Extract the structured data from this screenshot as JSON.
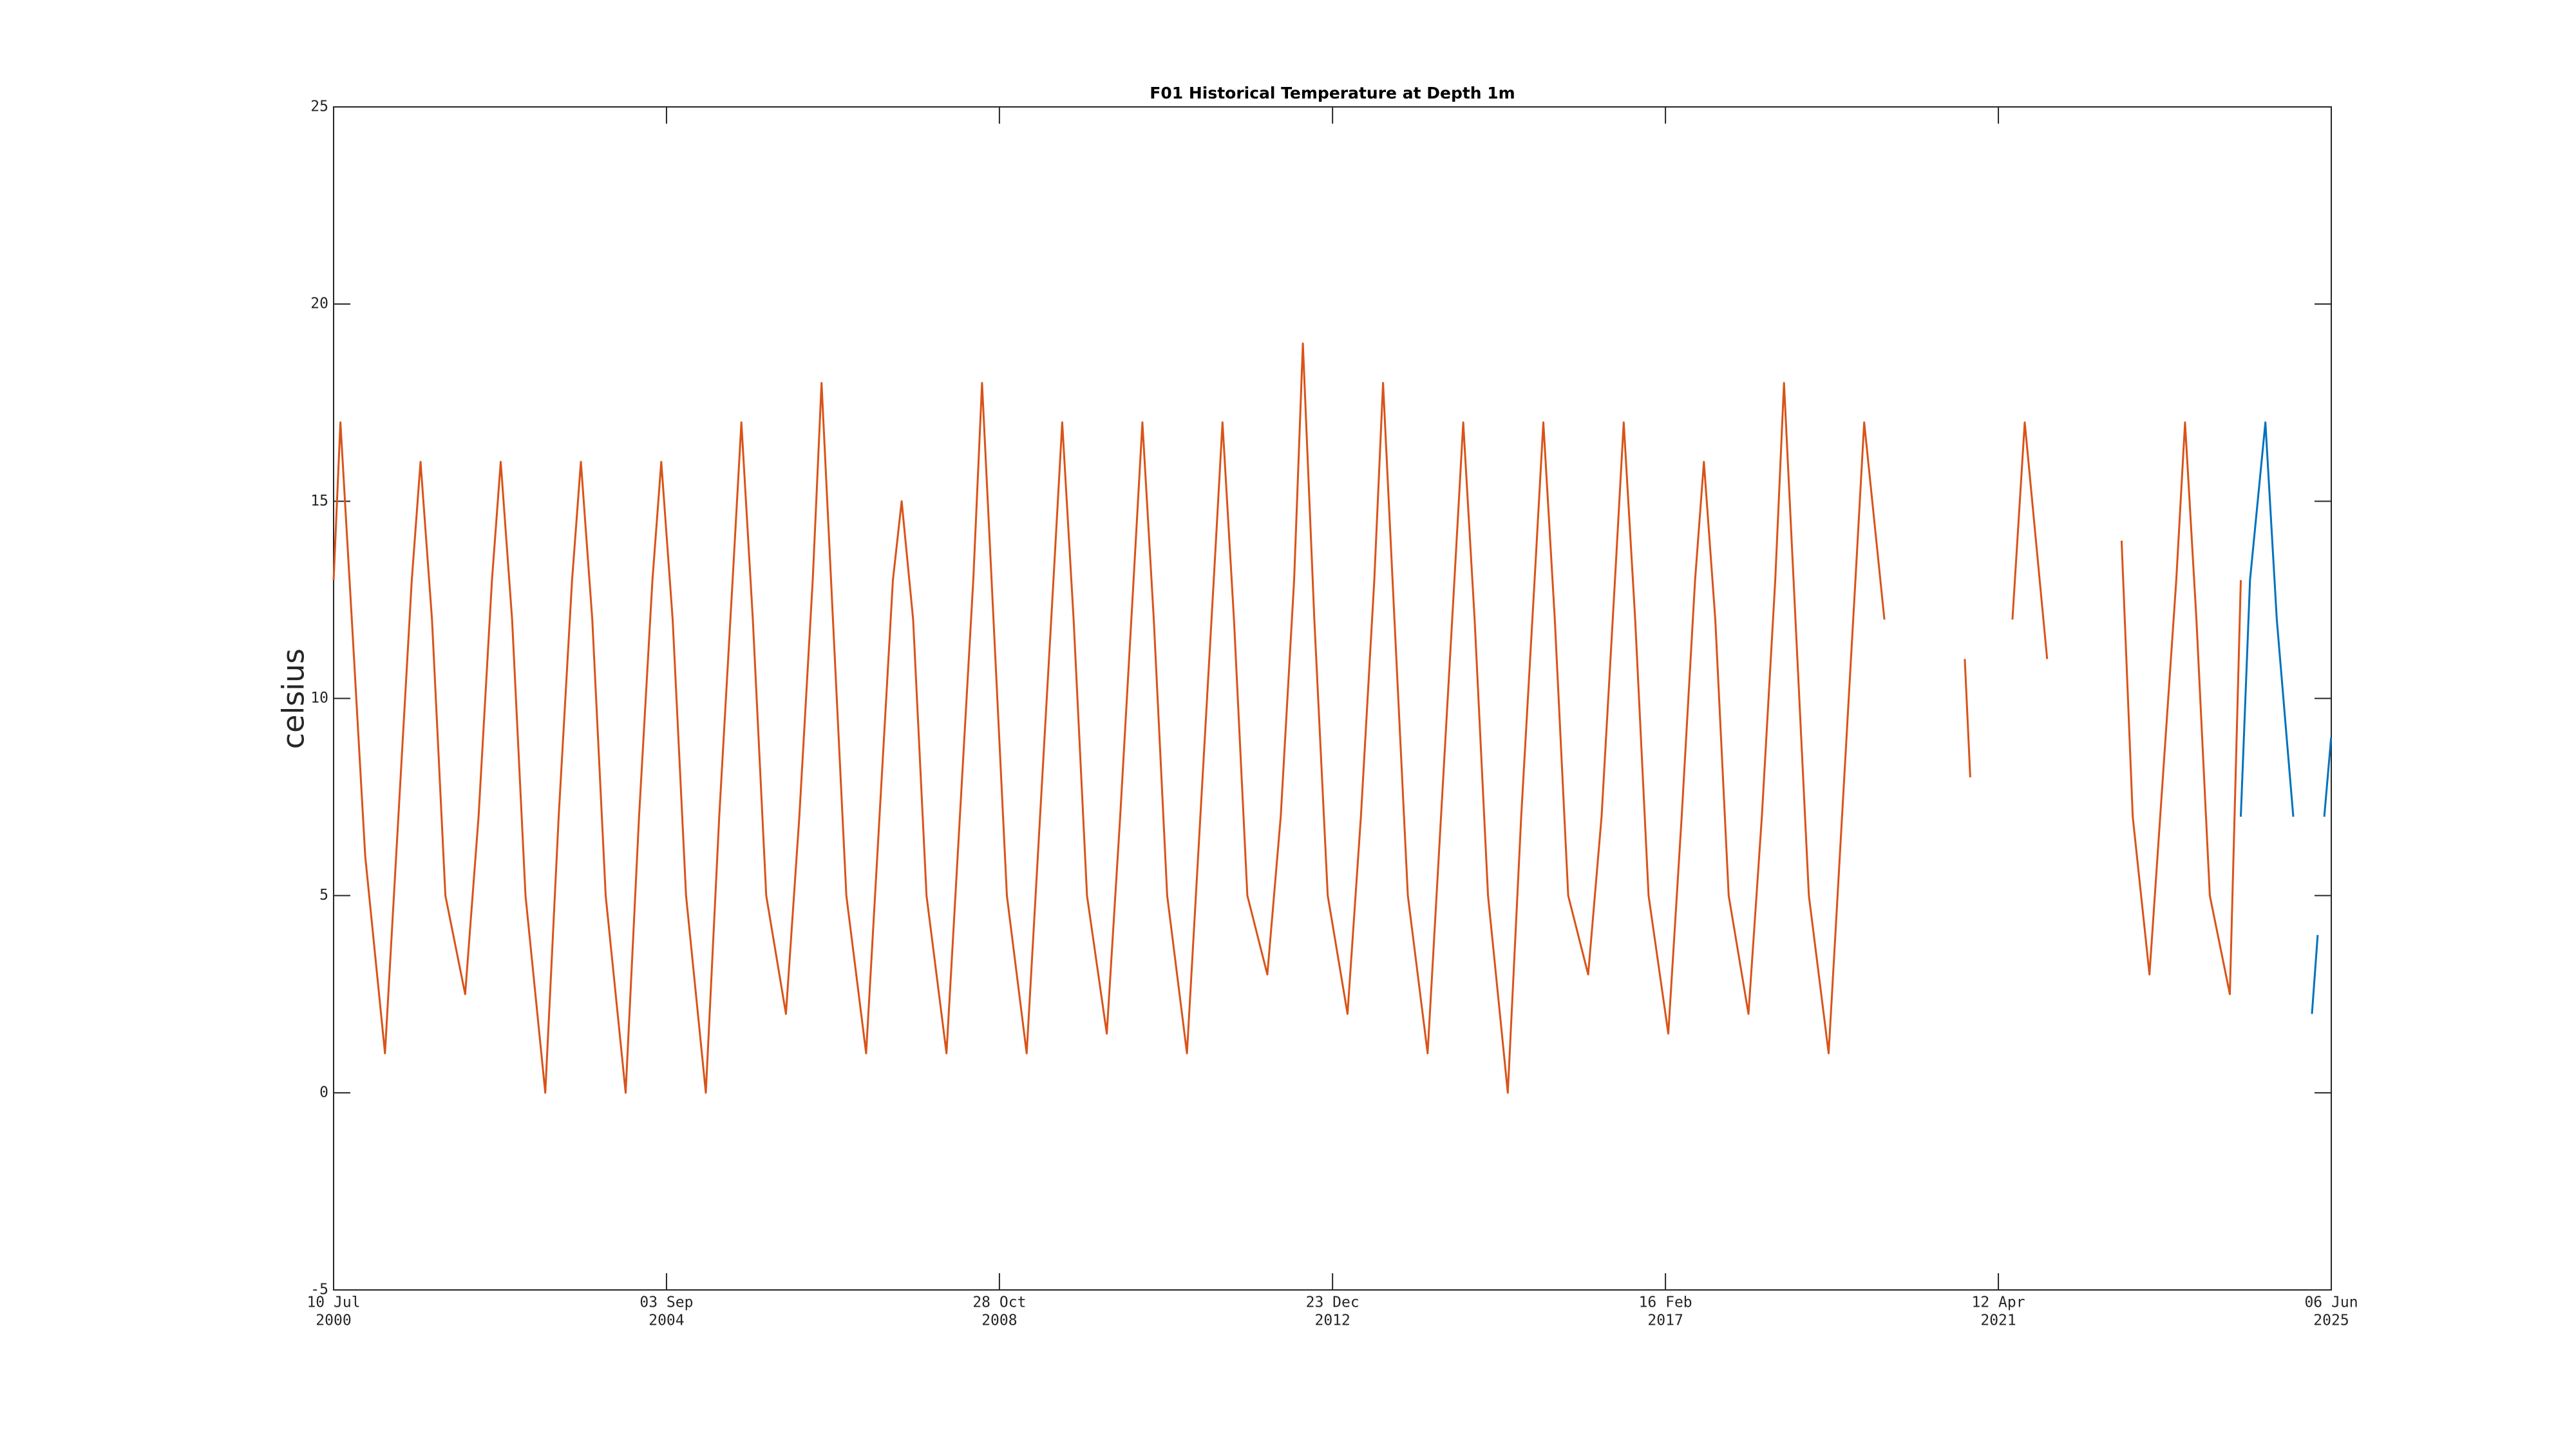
{
  "chart_data": {
    "type": "line",
    "title": "F01 Historical Temperature at Depth 1m",
    "y_label": "celsius",
    "ylim": [
      -5,
      25
    ],
    "yticks": [
      -5,
      0,
      5,
      10,
      15,
      20,
      25
    ],
    "xlim": [
      "2000-07-10",
      "2025-06-06"
    ],
    "xticks": [
      {
        "value": "2000-07-10",
        "label": [
          "10 Jul",
          "2000"
        ]
      },
      {
        "value": "2004-09-03",
        "label": [
          "03 Sep",
          "2004"
        ]
      },
      {
        "value": "2008-10-28",
        "label": [
          "28 Oct",
          "2008"
        ]
      },
      {
        "value": "2012-12-23",
        "label": [
          "23 Dec",
          "2012"
        ]
      },
      {
        "value": "2017-02-16",
        "label": [
          "16 Feb",
          "2017"
        ]
      },
      {
        "value": "2021-04-12",
        "label": [
          "12 Apr",
          "2021"
        ]
      },
      {
        "value": "2025-06-06",
        "label": [
          "06 Jun",
          "2025"
        ]
      }
    ],
    "series": [
      {
        "color": "#D95319",
        "x": [
          "2000-07-10",
          "2000-08-10",
          "2000-10-01",
          "2000-12-01",
          "2001-03-01",
          "2001-05-01",
          "2001-07-01",
          "2001-08-10",
          "2001-10-01",
          "2001-12-01",
          "2002-03-01",
          "2002-05-01",
          "2002-07-01",
          "2002-08-10",
          "2002-10-01",
          "2002-12-01",
          "2003-03-01",
          "2003-05-01",
          "2003-07-01",
          "2003-08-10",
          "2003-10-01",
          "2003-12-01",
          "2004-03-01",
          "2004-05-01",
          "2004-07-01",
          "2004-08-10",
          "2004-10-01",
          "2004-12-01",
          "2005-03-01",
          "2005-05-01",
          "2005-07-01",
          "2005-08-10",
          "2005-10-01",
          "2005-12-01",
          "2006-03-01",
          "2006-05-01",
          "2006-07-01",
          "2006-08-10",
          "2006-10-01",
          "2006-12-01",
          "2007-03-01",
          "2007-05-01",
          "2007-07-01",
          "2007-08-10",
          "2007-10-01",
          "2007-12-01",
          "2008-03-01",
          "2008-05-01",
          "2008-07-01",
          "2008-08-10",
          "2008-10-01",
          "2008-12-01",
          "2009-03-01",
          "2009-05-01",
          "2009-07-01",
          "2009-08-10",
          "2009-10-01",
          "2009-12-01",
          "2010-03-01",
          "2010-05-01",
          "2010-07-01",
          "2010-08-10",
          "2010-10-01",
          "2010-12-01",
          "2011-03-01",
          "2011-05-01",
          "2011-07-01",
          "2011-08-10",
          "2011-10-01",
          "2011-12-01",
          "2012-03-01",
          "2012-05-01",
          "2012-07-01",
          "2012-08-10",
          "2012-10-01",
          "2012-12-01",
          "2013-03-01",
          "2013-05-01",
          "2013-07-01",
          "2013-08-10",
          "2013-10-01",
          "2013-12-01",
          "2014-03-01",
          "2014-05-01",
          "2014-07-01",
          "2014-08-10",
          "2014-10-01",
          "2014-12-01",
          "2015-03-01",
          "2015-05-01",
          "2015-07-01",
          "2015-08-10",
          "2015-10-01",
          "2015-12-01",
          "2016-03-01",
          "2016-05-01",
          "2016-07-01",
          "2016-08-10",
          "2016-10-01",
          "2016-12-01",
          "2017-03-01",
          "2017-05-01",
          "2017-07-01",
          "2017-08-10",
          "2017-10-01",
          "2017-12-01",
          "2018-03-01",
          "2018-05-01",
          "2018-07-01",
          "2018-08-10",
          "2018-10-01",
          "2018-12-01",
          "2019-03-01",
          "2019-05-01",
          "2019-07-01",
          "2019-08-10",
          "2019-11-10",
          "2020-06-01",
          "2020-11-10",
          "2020-12-05",
          "2021-03-01",
          "2021-06-15",
          "2021-08-10",
          "2021-11-20",
          "2022-06-01",
          "2022-10-25",
          "2022-12-15",
          "2023-03-01",
          "2023-05-01",
          "2023-07-01",
          "2023-08-10",
          "2023-10-01",
          "2023-12-01",
          "2024-03-01",
          "2024-04-20"
        ],
        "values": [
          13,
          17,
          12,
          6,
          1,
          7,
          13,
          16,
          12,
          5,
          2.5,
          7,
          13,
          16,
          12,
          5,
          0,
          7,
          13,
          16,
          12,
          5,
          0,
          7,
          13,
          16,
          12,
          5,
          0,
          7,
          13,
          17,
          12,
          5,
          2,
          7,
          13,
          18,
          12,
          5,
          1,
          7,
          13,
          15,
          12,
          5,
          1,
          7,
          13,
          18,
          12,
          5,
          1,
          7,
          13,
          17,
          12,
          5,
          1.5,
          7,
          13,
          17,
          12,
          5,
          1,
          7,
          13,
          17,
          12,
          5,
          3,
          7,
          13,
          19,
          12,
          5,
          2,
          7,
          13,
          18,
          12,
          5,
          1,
          7,
          13,
          17,
          12,
          5,
          0,
          7,
          13,
          17,
          12,
          5,
          3,
          7,
          13,
          17,
          12,
          5,
          1.5,
          7,
          13,
          16,
          12,
          5,
          2,
          7,
          13,
          18,
          12,
          5,
          1,
          7,
          13,
          17,
          12,
          null,
          11,
          8,
          null,
          12,
          17,
          11,
          null,
          14,
          7,
          3,
          8,
          13,
          17,
          12,
          5,
          2.5,
          13
        ]
      },
      {
        "color": "#0072BD",
        "x": [
          "2024-04-20",
          "2024-06-01",
          "2024-08-10",
          "2024-10-01",
          "2024-12-15",
          "2025-02-10",
          "2025-03-10",
          "2025-04-05",
          "2025-04-20",
          "2025-05-05",
          "2025-06-05"
        ],
        "values": [
          7,
          13,
          17,
          12,
          7,
          null,
          2,
          4,
          null,
          7,
          9
        ]
      }
    ]
  }
}
